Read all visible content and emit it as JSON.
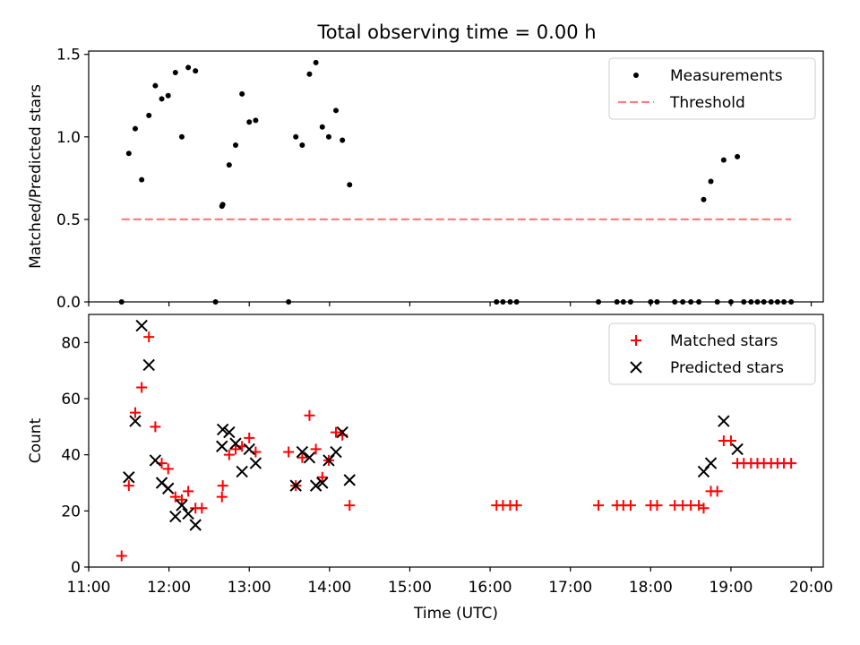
{
  "title": "Total observing time = 0.00 h",
  "chart_data": [
    {
      "type": "scatter",
      "name": "ratio-panel",
      "ylabel": "Matched/Predicted stars",
      "xlabel": "",
      "xlim": [
        11.0,
        20.15
      ],
      "ylim": [
        0.0,
        1.52
      ],
      "yticks": [
        0.0,
        0.5,
        1.0,
        1.5
      ],
      "ytick_labels": [
        "0.0",
        "0.5",
        "1.0",
        "1.5"
      ],
      "grid": false,
      "legend_position": "top-right",
      "series": [
        {
          "name": "Measurements",
          "marker": "dot",
          "color": "#000000",
          "points": [
            [
              11.41,
              0.0
            ],
            [
              11.5,
              0.9
            ],
            [
              11.58,
              1.05
            ],
            [
              11.66,
              0.74
            ],
            [
              11.75,
              1.13
            ],
            [
              11.83,
              1.31
            ],
            [
              11.91,
              1.23
            ],
            [
              11.99,
              1.25
            ],
            [
              12.08,
              1.39
            ],
            [
              12.16,
              1.0
            ],
            [
              12.24,
              1.42
            ],
            [
              12.33,
              1.4
            ],
            [
              12.58,
              0.0
            ],
            [
              12.66,
              0.58
            ],
            [
              12.67,
              0.59
            ],
            [
              12.75,
              0.83
            ],
            [
              12.83,
              0.95
            ],
            [
              12.91,
              1.26
            ],
            [
              13.0,
              1.09
            ],
            [
              13.08,
              1.1
            ],
            [
              13.49,
              0.0
            ],
            [
              13.58,
              1.0
            ],
            [
              13.66,
              0.95
            ],
            [
              13.75,
              1.38
            ],
            [
              13.83,
              1.45
            ],
            [
              13.91,
              1.06
            ],
            [
              13.99,
              1.0
            ],
            [
              14.08,
              1.16
            ],
            [
              14.16,
              0.98
            ],
            [
              14.25,
              0.71
            ],
            [
              16.08,
              0.0
            ],
            [
              16.16,
              0.0
            ],
            [
              16.25,
              0.0
            ],
            [
              16.33,
              0.0
            ],
            [
              17.35,
              0.0
            ],
            [
              17.58,
              0.0
            ],
            [
              17.66,
              0.0
            ],
            [
              17.75,
              0.0
            ],
            [
              18.0,
              0.0
            ],
            [
              18.08,
              0.0
            ],
            [
              18.3,
              0.0
            ],
            [
              18.4,
              0.0
            ],
            [
              18.5,
              0.0
            ],
            [
              18.6,
              0.0
            ],
            [
              18.66,
              0.62
            ],
            [
              18.75,
              0.73
            ],
            [
              18.83,
              0.0
            ],
            [
              18.91,
              0.86
            ],
            [
              19.0,
              0.0
            ],
            [
              19.08,
              0.88
            ],
            [
              19.16,
              0.0
            ],
            [
              19.25,
              0.0
            ],
            [
              19.33,
              0.0
            ],
            [
              19.41,
              0.0
            ],
            [
              19.5,
              0.0
            ],
            [
              19.58,
              0.0
            ],
            [
              19.66,
              0.0
            ],
            [
              19.75,
              0.0
            ]
          ]
        },
        {
          "name": "Threshold",
          "marker": "dashed-line",
          "color": "#ff7f7f",
          "points": [
            [
              11.41,
              0.5
            ],
            [
              19.75,
              0.5
            ]
          ]
        }
      ]
    },
    {
      "type": "scatter",
      "name": "count-panel",
      "ylabel": "Count",
      "xlabel": "Time (UTC)",
      "xlim": [
        11.0,
        20.15
      ],
      "ylim": [
        0,
        90
      ],
      "xticks": [
        11,
        12,
        13,
        14,
        15,
        16,
        17,
        18,
        19,
        20
      ],
      "xtick_labels": [
        "11:00",
        "12:00",
        "13:00",
        "14:00",
        "15:00",
        "16:00",
        "17:00",
        "18:00",
        "19:00",
        "20:00"
      ],
      "yticks": [
        0,
        20,
        40,
        60,
        80
      ],
      "ytick_labels": [
        "0",
        "20",
        "40",
        "60",
        "80"
      ],
      "grid": false,
      "legend_position": "top-right",
      "series": [
        {
          "name": "Matched stars",
          "marker": "plus",
          "color": "#ff0000",
          "points": [
            [
              11.41,
              4
            ],
            [
              11.5,
              29
            ],
            [
              11.58,
              55
            ],
            [
              11.66,
              64
            ],
            [
              11.75,
              82
            ],
            [
              11.83,
              50
            ],
            [
              11.91,
              37
            ],
            [
              11.99,
              35
            ],
            [
              12.08,
              25
            ],
            [
              12.16,
              24
            ],
            [
              12.24,
              27
            ],
            [
              12.33,
              21
            ],
            [
              12.41,
              21
            ],
            [
              12.66,
              25
            ],
            [
              12.67,
              29
            ],
            [
              12.75,
              40
            ],
            [
              12.83,
              42
            ],
            [
              12.91,
              43
            ],
            [
              13.0,
              46
            ],
            [
              13.08,
              41
            ],
            [
              13.49,
              41
            ],
            [
              13.58,
              29
            ],
            [
              13.66,
              39
            ],
            [
              13.75,
              54
            ],
            [
              13.83,
              42
            ],
            [
              13.91,
              32
            ],
            [
              13.99,
              38
            ],
            [
              14.08,
              48
            ],
            [
              14.16,
              47
            ],
            [
              14.25,
              22
            ],
            [
              16.08,
              22
            ],
            [
              16.16,
              22
            ],
            [
              16.25,
              22
            ],
            [
              16.33,
              22
            ],
            [
              17.35,
              22
            ],
            [
              17.58,
              22
            ],
            [
              17.66,
              22
            ],
            [
              17.75,
              22
            ],
            [
              18.0,
              22
            ],
            [
              18.08,
              22
            ],
            [
              18.3,
              22
            ],
            [
              18.4,
              22
            ],
            [
              18.5,
              22
            ],
            [
              18.6,
              22
            ],
            [
              18.66,
              21
            ],
            [
              18.75,
              27
            ],
            [
              18.83,
              27
            ],
            [
              18.91,
              45
            ],
            [
              19.0,
              45
            ],
            [
              19.08,
              37
            ],
            [
              19.16,
              37
            ],
            [
              19.25,
              37
            ],
            [
              19.33,
              37
            ],
            [
              19.41,
              37
            ],
            [
              19.5,
              37
            ],
            [
              19.58,
              37
            ],
            [
              19.66,
              37
            ],
            [
              19.75,
              37
            ]
          ]
        },
        {
          "name": "Predicted stars",
          "marker": "x",
          "color": "#000000",
          "points": [
            [
              11.5,
              32
            ],
            [
              11.58,
              52
            ],
            [
              11.66,
              86
            ],
            [
              11.75,
              72
            ],
            [
              11.83,
              38
            ],
            [
              11.91,
              30
            ],
            [
              11.99,
              28
            ],
            [
              12.08,
              18
            ],
            [
              12.16,
              22
            ],
            [
              12.24,
              19
            ],
            [
              12.33,
              15
            ],
            [
              12.66,
              43
            ],
            [
              12.67,
              49
            ],
            [
              12.75,
              48
            ],
            [
              12.83,
              44
            ],
            [
              12.91,
              34
            ],
            [
              13.0,
              42
            ],
            [
              13.08,
              37
            ],
            [
              13.58,
              29
            ],
            [
              13.66,
              41
            ],
            [
              13.75,
              39
            ],
            [
              13.83,
              29
            ],
            [
              13.91,
              30
            ],
            [
              13.99,
              38
            ],
            [
              14.08,
              41
            ],
            [
              14.16,
              48
            ],
            [
              14.25,
              31
            ],
            [
              18.66,
              34
            ],
            [
              18.75,
              37
            ],
            [
              18.91,
              52
            ],
            [
              19.08,
              42
            ]
          ]
        }
      ]
    }
  ]
}
